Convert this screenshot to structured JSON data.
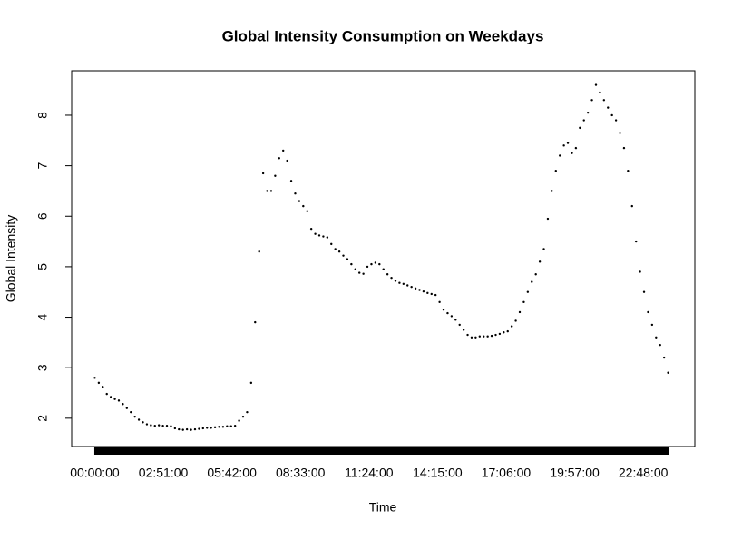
{
  "chart_data": {
    "type": "scatter",
    "title": "Global Intensity Consumption on Weekdays",
    "x_label": "Time",
    "y_label": "Global Intensity",
    "x": [
      0,
      10,
      20,
      30,
      40,
      50,
      60,
      70,
      80,
      90,
      100,
      110,
      120,
      130,
      140,
      150,
      160,
      170,
      180,
      190,
      200,
      210,
      220,
      230,
      240,
      250,
      260,
      270,
      280,
      290,
      300,
      310,
      320,
      330,
      340,
      350,
      360,
      370,
      380,
      390,
      400,
      410,
      420,
      430,
      440,
      450,
      460,
      470,
      480,
      490,
      500,
      510,
      520,
      530,
      540,
      550,
      560,
      570,
      580,
      590,
      600,
      610,
      620,
      630,
      640,
      650,
      660,
      670,
      680,
      690,
      700,
      710,
      720,
      730,
      740,
      750,
      760,
      770,
      780,
      790,
      800,
      810,
      820,
      830,
      840,
      850,
      860,
      870,
      880,
      890,
      900,
      910,
      920,
      930,
      940,
      950,
      960,
      970,
      980,
      990,
      1000,
      1010,
      1020,
      1030,
      1040,
      1050,
      1060,
      1070,
      1080,
      1090,
      1100,
      1110,
      1120,
      1130,
      1140,
      1150,
      1160,
      1170,
      1180,
      1190,
      1200,
      1210,
      1220,
      1230,
      1240,
      1250,
      1260,
      1270,
      1280,
      1290,
      1300,
      1310,
      1320,
      1330,
      1340,
      1350,
      1360,
      1370,
      1380,
      1390,
      1400,
      1410,
      1420,
      1430
    ],
    "values": [
      2.8,
      2.7,
      2.62,
      2.48,
      2.42,
      2.38,
      2.35,
      2.28,
      2.2,
      2.12,
      2.03,
      1.97,
      1.92,
      1.88,
      1.86,
      1.85,
      1.86,
      1.85,
      1.85,
      1.84,
      1.8,
      1.78,
      1.77,
      1.78,
      1.77,
      1.78,
      1.79,
      1.8,
      1.81,
      1.81,
      1.82,
      1.83,
      1.83,
      1.84,
      1.84,
      1.85,
      1.95,
      2.03,
      2.12,
      2.7,
      3.9,
      5.3,
      6.85,
      6.5,
      6.5,
      6.8,
      7.15,
      7.3,
      7.1,
      6.7,
      6.45,
      6.3,
      6.2,
      6.1,
      5.75,
      5.65,
      5.62,
      5.6,
      5.58,
      5.45,
      5.35,
      5.3,
      5.22,
      5.15,
      5.05,
      4.95,
      4.88,
      4.86,
      5.0,
      5.05,
      5.08,
      5.05,
      4.95,
      4.85,
      4.78,
      4.72,
      4.68,
      4.66,
      4.63,
      4.6,
      4.57,
      4.54,
      4.51,
      4.48,
      4.46,
      4.44,
      4.3,
      4.15,
      4.08,
      4.02,
      3.95,
      3.85,
      3.75,
      3.65,
      3.6,
      3.6,
      3.62,
      3.62,
      3.62,
      3.63,
      3.65,
      3.67,
      3.7,
      3.72,
      3.82,
      3.93,
      4.1,
      4.3,
      4.5,
      4.7,
      4.85,
      5.1,
      5.35,
      5.95,
      6.5,
      6.9,
      7.2,
      7.4,
      7.45,
      7.25,
      7.35,
      7.75,
      7.9,
      8.05,
      8.3,
      8.6,
      8.45,
      8.3,
      8.15,
      8.0,
      7.9,
      7.65,
      7.35,
      6.9,
      6.2,
      5.5,
      4.9,
      4.5,
      4.1,
      3.85,
      3.6,
      3.45,
      3.2,
      2.9
    ],
    "color": "#000000",
    "xlim": [
      -57.6,
      1496.6
    ],
    "xticks": [
      {
        "value": 0,
        "label": "00:00:00"
      },
      {
        "value": 171,
        "label": "02:51:00"
      },
      {
        "value": 342,
        "label": "05:42:00"
      },
      {
        "value": 513,
        "label": "08:33:00"
      },
      {
        "value": 684,
        "label": "11:24:00"
      },
      {
        "value": 855,
        "label": "14:15:00"
      },
      {
        "value": 1026,
        "label": "17:06:00"
      },
      {
        "value": 1197,
        "label": "19:57:00"
      },
      {
        "value": 1368,
        "label": "22:48:00"
      }
    ],
    "ylim": [
      1.44,
      8.88
    ],
    "yticks": [
      2,
      3,
      4,
      5,
      6,
      7,
      8
    ]
  }
}
